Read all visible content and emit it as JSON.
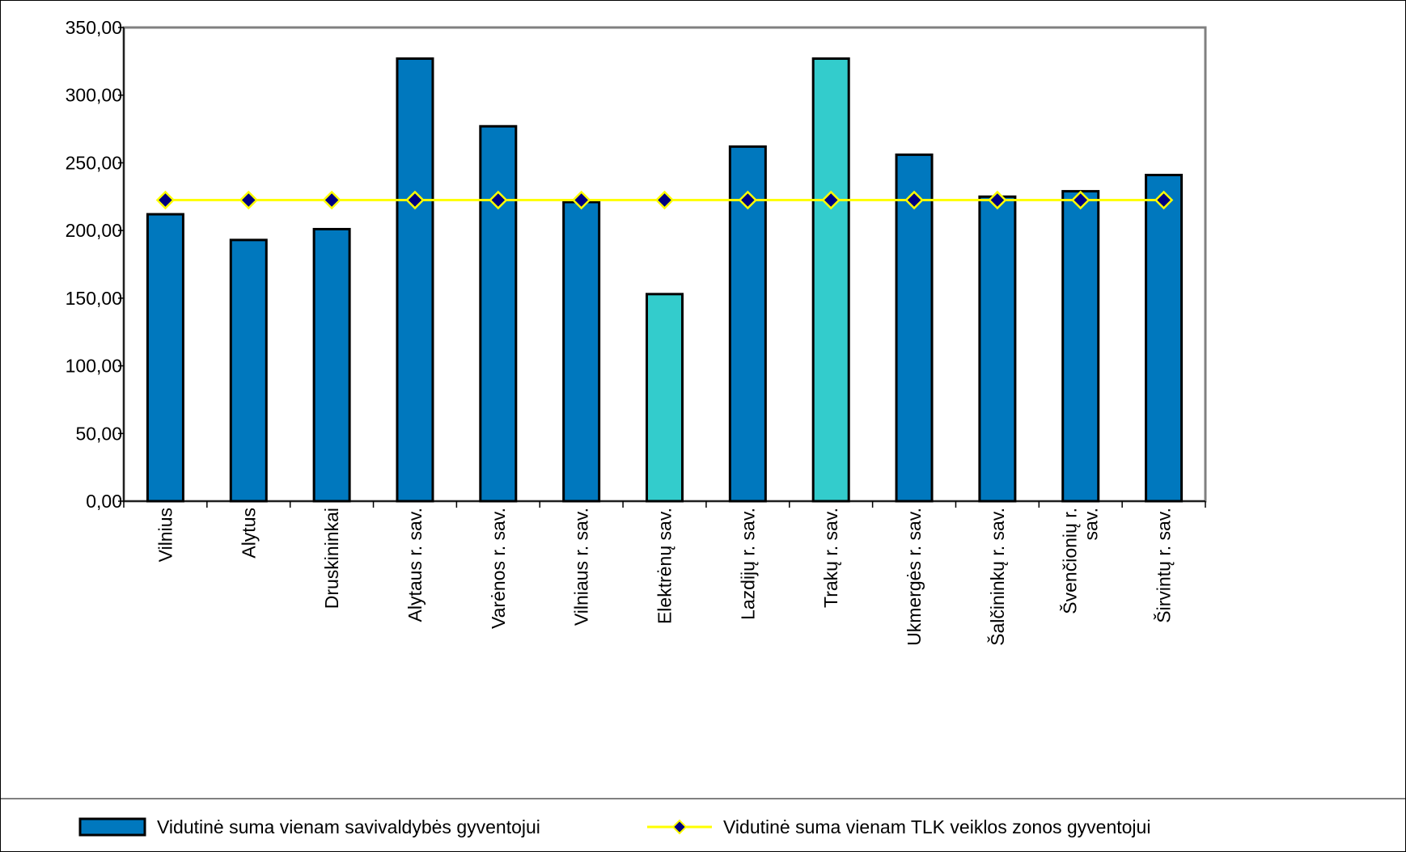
{
  "chart_data": {
    "type": "bar",
    "title": "",
    "xlabel": "",
    "ylabel": "",
    "ylim": [
      0,
      350
    ],
    "y_ticks": [
      "0,00",
      "50,00",
      "100,00",
      "150,00",
      "200,00",
      "250,00",
      "300,00",
      "350,00"
    ],
    "y_tick_values": [
      0,
      50,
      100,
      150,
      200,
      250,
      300,
      350
    ],
    "grid": false,
    "legend_position": "bottom",
    "categories": [
      [
        "Vilnius"
      ],
      [
        "Alytus"
      ],
      [
        "Druskininkai"
      ],
      [
        "Alytaus r. sav."
      ],
      [
        "Varėnos r. sav."
      ],
      [
        "Vilniaus r. sav."
      ],
      [
        "Elektrėnų sav."
      ],
      [
        "Lazdijų r. sav."
      ],
      [
        "Trakų r. sav."
      ],
      [
        "Ukmergės r. sav."
      ],
      [
        "Šalčininkų r. sav."
      ],
      [
        "Švenčionių r.",
        "sav."
      ],
      [
        "Širvintų r. sav."
      ]
    ],
    "series": [
      {
        "name": "Vidutinė suma vienam savivaldybės gyventojui",
        "type": "bar",
        "color": "#0078BE",
        "highlight_color": "#33CCCC",
        "highlight_indices": [
          6,
          8
        ],
        "values": [
          212,
          193,
          201,
          327,
          277,
          221,
          153,
          262,
          327,
          256,
          225,
          229,
          241
        ]
      },
      {
        "name": "Vidutinė suma vienam TLK veiklos zonos gyventojui",
        "type": "line",
        "color": "#FFFF00",
        "marker_color": "#000080",
        "values": [
          222.5,
          222.5,
          222.5,
          222.5,
          222.5,
          222.5,
          222.5,
          222.5,
          222.5,
          222.5,
          222.5,
          222.5,
          222.5
        ]
      }
    ]
  }
}
